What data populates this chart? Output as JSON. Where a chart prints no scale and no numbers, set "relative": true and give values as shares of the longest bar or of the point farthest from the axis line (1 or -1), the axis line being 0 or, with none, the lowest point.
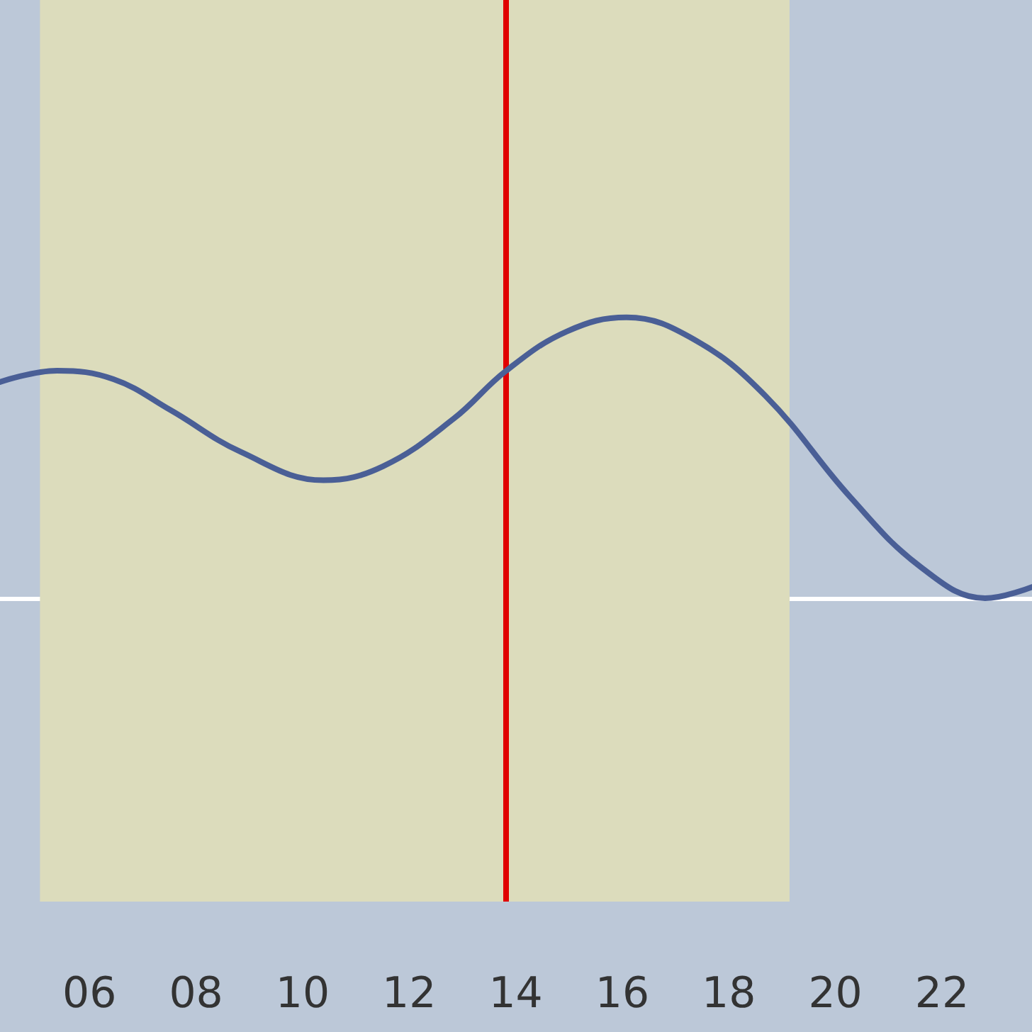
{
  "chart_data": {
    "type": "line",
    "relative": true,
    "x": [
      4.32,
      5.39,
      6.45,
      7.52,
      8.85,
      10.39,
      11.51,
      12.84,
      13.82,
      14.96,
      16.08,
      17.36,
      18.69,
      20.28,
      21.61,
      22.81,
      23.69
    ],
    "series": [
      {
        "color": "#4a5f96",
        "values": [
          0.77,
          0.81,
          0.78,
          0.67,
          0.52,
          0.42,
          0.47,
          0.64,
          0.81,
          0.95,
          1,
          0.92,
          0.72,
          0.36,
          0.11,
          0,
          0.04
        ]
      }
    ],
    "xlim": [
      4.32,
      23.69
    ],
    "xticks": [
      {
        "value": 6,
        "label": "06"
      },
      {
        "value": 8,
        "label": "08"
      },
      {
        "value": 10,
        "label": "10"
      },
      {
        "value": 12,
        "label": "12"
      },
      {
        "value": 14,
        "label": "14"
      },
      {
        "value": 16,
        "label": "16"
      },
      {
        "value": 18,
        "label": "18"
      },
      {
        "value": 20,
        "label": "20"
      },
      {
        "value": 22,
        "label": "22"
      }
    ],
    "bands": [
      {
        "axis": "x",
        "from": 5.07,
        "to": 19.14,
        "color": "#dcdcbc"
      }
    ],
    "ref_lines": [
      {
        "axis": "x",
        "value": 13.82,
        "color": "#e00000",
        "line_style": "solid"
      }
    ],
    "marker": "none",
    "line_style": "solid"
  }
}
